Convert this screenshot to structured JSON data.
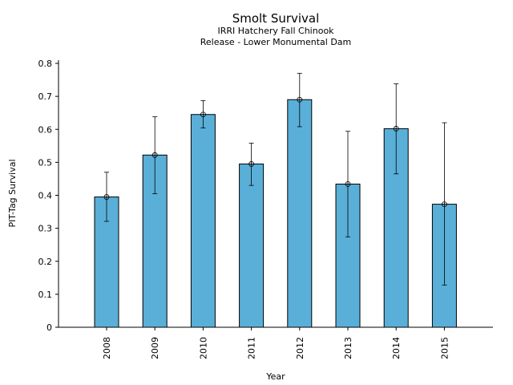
{
  "chart_data": {
    "type": "bar",
    "title": "Smolt Survival",
    "subtitle_lines": [
      "IRRI Hatchery Fall Chinook",
      "Release - Lower Monumental Dam"
    ],
    "xlabel": "Year",
    "ylabel": "PIT-Tag Survival",
    "categories": [
      "2008",
      "2009",
      "2010",
      "2011",
      "2012",
      "2013",
      "2014",
      "2015"
    ],
    "values": [
      0.395,
      0.522,
      0.645,
      0.495,
      0.69,
      0.434,
      0.602,
      0.373
    ],
    "error_low": [
      0.321,
      0.405,
      0.604,
      0.43,
      0.608,
      0.274,
      0.465,
      0.128
    ],
    "error_high": [
      0.47,
      0.638,
      0.687,
      0.558,
      0.77,
      0.594,
      0.738,
      0.62
    ],
    "yticks": [
      "0",
      "0.1",
      "0.2",
      "0.3",
      "0.4",
      "0.5",
      "0.6",
      "0.7",
      "0.8"
    ],
    "ylim": [
      0,
      0.8
    ],
    "bar_color": "#5aafd8",
    "grid": false,
    "legend": false
  }
}
